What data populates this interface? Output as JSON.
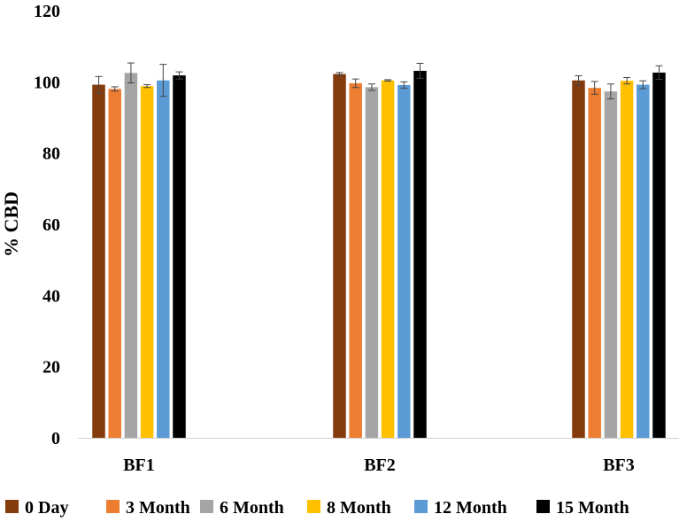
{
  "chart_data": {
    "type": "bar",
    "title": "",
    "xlabel": "",
    "ylabel": "% CBD",
    "ylim": [
      0,
      120
    ],
    "yticks": [
      0,
      20,
      40,
      60,
      80,
      100,
      120
    ],
    "grid": false,
    "legend_position": "bottom",
    "categories": [
      "BF1",
      "BF2",
      "BF3"
    ],
    "series": [
      {
        "name": "0 Day",
        "color": "#843c0c",
        "values": [
          99.2,
          102.2,
          100.4
        ],
        "errors": [
          2.3,
          0.4,
          1.3
        ]
      },
      {
        "name": "3 Month",
        "color": "#ed7d31",
        "values": [
          98.0,
          99.6,
          98.3
        ],
        "errors": [
          0.6,
          1.2,
          1.8
        ]
      },
      {
        "name": "6 Month",
        "color": "#a5a5a5",
        "values": [
          102.5,
          98.5,
          97.3
        ],
        "errors": [
          2.8,
          0.9,
          2.1
        ]
      },
      {
        "name": "8 Month",
        "color": "#ffc000",
        "values": [
          98.8,
          100.4,
          100.3
        ],
        "errors": [
          0.4,
          0.2,
          0.9
        ]
      },
      {
        "name": "12 Month",
        "color": "#5b9bd5",
        "values": [
          100.4,
          99.1,
          99.2
        ],
        "errors": [
          4.5,
          0.9,
          1.1
        ]
      },
      {
        "name": "15 Month",
        "color": "#000000",
        "values": [
          101.8,
          103.1,
          102.6
        ],
        "errors": [
          1.0,
          2.1,
          1.9
        ]
      }
    ]
  }
}
